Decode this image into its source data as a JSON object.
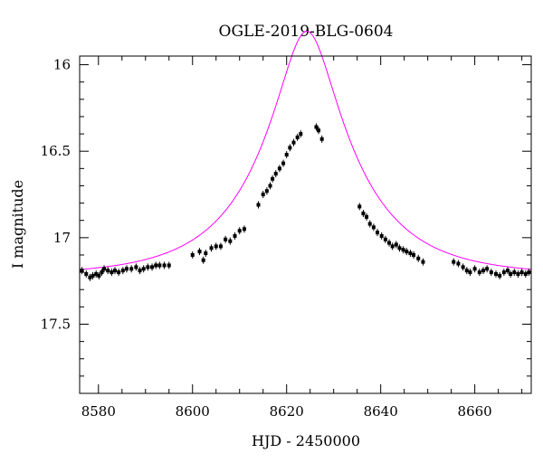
{
  "chart_data": {
    "type": "scatter",
    "title": "OGLE-2019-BLG-0604",
    "xlabel": "HJD - 2450000",
    "ylabel": "I magnitude",
    "xlim": [
      8576,
      8672
    ],
    "ylim": [
      15.95,
      17.9
    ],
    "y_inverted": true,
    "xticks": [
      8580,
      8600,
      8620,
      8640,
      8660
    ],
    "yticks": [
      16,
      16.5,
      17,
      17.5
    ],
    "xtick_labels": [
      "8580",
      "8600",
      "8620",
      "8640",
      "8660"
    ],
    "ytick_labels": [
      "16",
      "16.5",
      "17",
      "17.5"
    ],
    "grid": false,
    "point_color": "#000000",
    "model_color": "#ff00ff",
    "model": {
      "type": "paczynski",
      "t0": 8624.3,
      "u0": 0.28,
      "tE": 20,
      "I_base": 17.22
    },
    "series": [
      {
        "points": [
          [
            8576.5,
            17.19
          ],
          [
            8577.4,
            17.21
          ],
          [
            8578.2,
            17.23
          ],
          [
            8578.8,
            17.22
          ],
          [
            8579.5,
            17.21
          ],
          [
            8580.1,
            17.22
          ],
          [
            8580.7,
            17.2
          ],
          [
            8581.2,
            17.18
          ],
          [
            8582.0,
            17.19
          ],
          [
            8582.8,
            17.2
          ],
          [
            8583.5,
            17.19
          ],
          [
            8584.3,
            17.2
          ],
          [
            8585.2,
            17.19
          ],
          [
            8586.0,
            17.18
          ],
          [
            8587.0,
            17.18
          ],
          [
            8588.0,
            17.17
          ],
          [
            8588.8,
            17.19
          ],
          [
            8589.6,
            17.18
          ],
          [
            8590.5,
            17.17
          ],
          [
            8591.4,
            17.17
          ],
          [
            8592.2,
            17.16
          ],
          [
            8593.0,
            17.16
          ],
          [
            8594.0,
            17.16
          ],
          [
            8595.0,
            17.16
          ],
          [
            8600.0,
            17.1
          ],
          [
            8601.5,
            17.08
          ],
          [
            8602.3,
            17.13
          ],
          [
            8602.8,
            17.09
          ],
          [
            8604.0,
            17.06
          ],
          [
            8605.0,
            17.05
          ],
          [
            8606.0,
            17.05
          ],
          [
            8607.0,
            17.01
          ],
          [
            8608.0,
            17.02
          ],
          [
            8609.0,
            16.99
          ],
          [
            8610.0,
            16.96
          ],
          [
            8611.0,
            16.95
          ],
          [
            8614.0,
            16.81
          ],
          [
            8615.0,
            16.75
          ],
          [
            8615.8,
            16.73
          ],
          [
            8616.5,
            16.7
          ],
          [
            8617.0,
            16.66
          ],
          [
            8617.7,
            16.63
          ],
          [
            8618.5,
            16.6
          ],
          [
            8619.3,
            16.57
          ],
          [
            8620.0,
            16.52
          ],
          [
            8620.7,
            16.48
          ],
          [
            8621.5,
            16.45
          ],
          [
            8622.3,
            16.42
          ],
          [
            8623.0,
            16.4
          ],
          [
            8626.3,
            16.36
          ],
          [
            8626.8,
            16.38
          ],
          [
            8627.5,
            16.43
          ],
          [
            8635.5,
            16.82
          ],
          [
            8636.3,
            16.86
          ],
          [
            8637.0,
            16.88
          ],
          [
            8637.7,
            16.92
          ],
          [
            8638.5,
            16.94
          ],
          [
            8639.3,
            16.97
          ],
          [
            8640.2,
            16.99
          ],
          [
            8641.0,
            17.01
          ],
          [
            8641.8,
            17.03
          ],
          [
            8642.5,
            17.05
          ],
          [
            8643.3,
            17.04
          ],
          [
            8644.0,
            17.06
          ],
          [
            8644.8,
            17.07
          ],
          [
            8645.5,
            17.08
          ],
          [
            8646.3,
            17.09
          ],
          [
            8647.0,
            17.1
          ],
          [
            8648.0,
            17.12
          ],
          [
            8649.0,
            17.14
          ],
          [
            8655.5,
            17.14
          ],
          [
            8656.5,
            17.15
          ],
          [
            8657.5,
            17.17
          ],
          [
            8658.3,
            17.19
          ],
          [
            8659.0,
            17.2
          ],
          [
            8660.0,
            17.18
          ],
          [
            8661.0,
            17.2
          ],
          [
            8661.8,
            17.19
          ],
          [
            8662.6,
            17.18
          ],
          [
            8663.5,
            17.2
          ],
          [
            8664.5,
            17.21
          ],
          [
            8665.3,
            17.22
          ],
          [
            8666.2,
            17.2
          ],
          [
            8667.0,
            17.19
          ],
          [
            8667.6,
            17.21
          ],
          [
            8668.4,
            17.2
          ],
          [
            8669.2,
            17.21
          ],
          [
            8670.0,
            17.2
          ],
          [
            8670.8,
            17.21
          ],
          [
            8671.5,
            17.2
          ]
        ]
      }
    ]
  }
}
